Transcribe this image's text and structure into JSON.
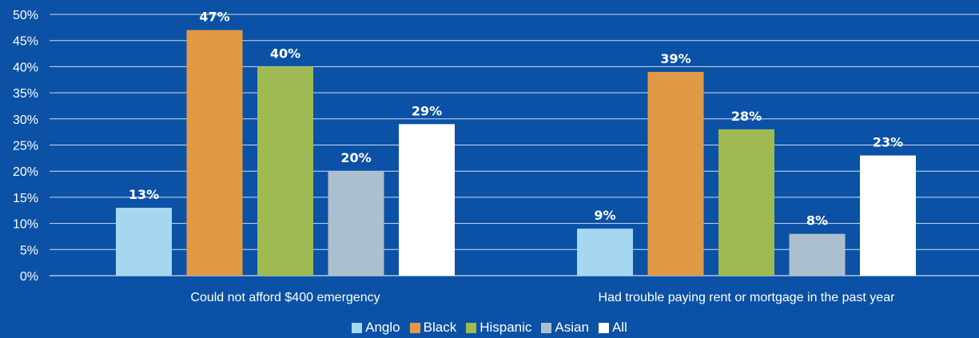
{
  "chart_data": {
    "type": "bar",
    "categories": [
      "Could not afford $400 emergency",
      "Had trouble paying rent or mortgage in the past year"
    ],
    "series": [
      {
        "name": "Anglo",
        "values": [
          13,
          9
        ],
        "labels": [
          "13%",
          "9%"
        ],
        "color": "#a5d8f0"
      },
      {
        "name": "Black",
        "values": [
          47,
          39
        ],
        "labels": [
          "47%",
          "39%"
        ],
        "color": "#e09a45"
      },
      {
        "name": "Hispanic",
        "values": [
          40,
          28
        ],
        "labels": [
          "40%",
          "28%"
        ],
        "color": "#9fba52"
      },
      {
        "name": "Asian",
        "values": [
          20,
          8
        ],
        "labels": [
          "20%",
          "8%"
        ],
        "color": "#acbfce"
      },
      {
        "name": "All",
        "values": [
          29,
          23
        ],
        "labels": [
          "29%",
          "23%"
        ],
        "color": "#ffffff"
      }
    ],
    "y_ticks": [
      "0%",
      "5%",
      "10%",
      "15%",
      "20%",
      "25%",
      "30%",
      "35%",
      "40%",
      "45%",
      "50%"
    ],
    "ylim": [
      0,
      50
    ],
    "grid": true,
    "legend_position": "bottom-center",
    "background_color": "#0b51a5",
    "gridline_color": "#ffffff"
  }
}
